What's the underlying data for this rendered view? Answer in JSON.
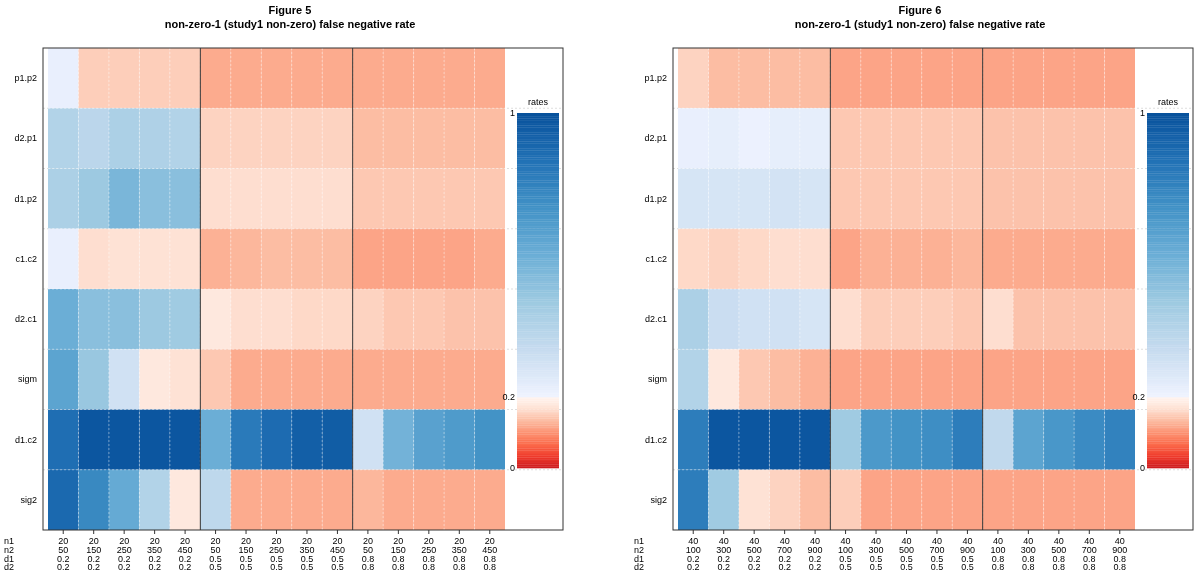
{
  "chart_data": [
    {
      "type": "heatmap",
      "title": "Figure 5",
      "subtitle": "non-zero-1 (study1 non-zero) false negative rate",
      "xlabel": "n1\nn2\nd1\nd2",
      "clabel": "rates",
      "clim": [
        0,
        1
      ],
      "cticks": [
        0,
        0.2,
        1
      ],
      "grid": true,
      "categories": [
        "20\n50\n0.2\n0.2",
        "20\n150\n0.2\n0.2",
        "20\n250\n0.2\n0.2",
        "20\n350\n0.2\n0.2",
        "20\n450\n0.2\n0.2",
        "20\n50\n0.5\n0.5",
        "20\n150\n0.5\n0.5",
        "20\n250\n0.5\n0.5",
        "20\n350\n0.5\n0.5",
        "20\n450\n0.5\n0.5",
        "20\n50\n0.8\n0.8",
        "20\n150\n0.8\n0.8",
        "20\n250\n0.8\n0.8",
        "20\n350\n0.8\n0.8",
        "20\n450\n0.8\n0.8"
      ],
      "y_categories": [
        "p1.p2",
        "d2.p1",
        "d1.p2",
        "c1.c2",
        "d2.c1",
        "sigm",
        "d1.c2",
        "sig2"
      ],
      "cells": [
        [
          0.22,
          0.15,
          0.15,
          0.15,
          0.15,
          0.12,
          0.12,
          0.12,
          0.12,
          0.12,
          0.12,
          0.12,
          0.12,
          0.12,
          0.12
        ],
        [
          0.4,
          0.37,
          0.42,
          0.41,
          0.4,
          0.155,
          0.155,
          0.155,
          0.155,
          0.155,
          0.135,
          0.135,
          0.135,
          0.135,
          0.135
        ],
        [
          0.42,
          0.47,
          0.56,
          0.52,
          0.52,
          0.165,
          0.165,
          0.165,
          0.165,
          0.165,
          0.145,
          0.145,
          0.145,
          0.145,
          0.145
        ],
        [
          0.22,
          0.165,
          0.17,
          0.17,
          0.17,
          0.125,
          0.13,
          0.135,
          0.135,
          0.135,
          0.115,
          0.115,
          0.115,
          0.115,
          0.12
        ],
        [
          0.6,
          0.52,
          0.52,
          0.47,
          0.46,
          0.18,
          0.165,
          0.165,
          0.16,
          0.16,
          0.155,
          0.145,
          0.145,
          0.14,
          0.14
        ],
        [
          0.65,
          0.48,
          0.3,
          0.18,
          0.17,
          0.145,
          0.12,
          0.12,
          0.12,
          0.12,
          0.12,
          0.12,
          0.12,
          0.12,
          0.12
        ],
        [
          0.88,
          0.98,
          0.98,
          0.98,
          0.98,
          0.6,
          0.83,
          0.89,
          0.94,
          0.95,
          0.3,
          0.58,
          0.66,
          0.69,
          0.73
        ],
        [
          0.9,
          0.77,
          0.62,
          0.4,
          0.18,
          0.36,
          0.12,
          0.12,
          0.12,
          0.12,
          0.13,
          0.12,
          0.12,
          0.12,
          0.12
        ]
      ]
    },
    {
      "type": "heatmap",
      "title": "Figure 6",
      "subtitle": "non-zero-1 (study1 non-zero) false negative rate",
      "xlabel": "n1\nn2\nd1\nd2",
      "clabel": "rates",
      "clim": [
        0,
        1
      ],
      "cticks": [
        0,
        0.2,
        1
      ],
      "grid": true,
      "categories": [
        "40\n100\n0.2\n0.2",
        "40\n300\n0.2\n0.2",
        "40\n500\n0.2\n0.2",
        "40\n700\n0.2\n0.2",
        "40\n900\n0.2\n0.2",
        "40\n100\n0.5\n0.5",
        "40\n300\n0.5\n0.5",
        "40\n500\n0.5\n0.5",
        "40\n700\n0.5\n0.5",
        "40\n900\n0.5\n0.5",
        "40\n100\n0.8\n0.8",
        "40\n300\n0.8\n0.8",
        "40\n500\n0.8\n0.8",
        "40\n700\n0.8\n0.8",
        "40\n900\n0.8\n0.8"
      ],
      "y_categories": [
        "p1.p2",
        "d2.p1",
        "d1.p2",
        "c1.c2",
        "d2.c1",
        "sigm",
        "d1.c2",
        "sig2"
      ],
      "cells": [
        [
          0.155,
          0.135,
          0.135,
          0.135,
          0.135,
          0.115,
          0.115,
          0.115,
          0.115,
          0.115,
          0.115,
          0.115,
          0.115,
          0.115,
          0.115
        ],
        [
          0.22,
          0.23,
          0.21,
          0.23,
          0.23,
          0.145,
          0.145,
          0.145,
          0.145,
          0.145,
          0.14,
          0.14,
          0.14,
          0.14,
          0.14
        ],
        [
          0.28,
          0.28,
          0.28,
          0.29,
          0.28,
          0.145,
          0.145,
          0.145,
          0.145,
          0.145,
          0.14,
          0.14,
          0.14,
          0.14,
          0.14
        ],
        [
          0.16,
          0.155,
          0.16,
          0.165,
          0.165,
          0.115,
          0.125,
          0.125,
          0.125,
          0.13,
          0.12,
          0.12,
          0.12,
          0.12,
          0.12
        ],
        [
          0.42,
          0.32,
          0.3,
          0.3,
          0.28,
          0.165,
          0.15,
          0.15,
          0.15,
          0.145,
          0.165,
          0.14,
          0.14,
          0.14,
          0.14
        ],
        [
          0.4,
          0.18,
          0.145,
          0.135,
          0.125,
          0.115,
          0.115,
          0.115,
          0.115,
          0.115,
          0.115,
          0.115,
          0.115,
          0.115,
          0.115
        ],
        [
          0.82,
          0.98,
          0.98,
          0.98,
          0.98,
          0.46,
          0.7,
          0.73,
          0.75,
          0.82,
          0.35,
          0.65,
          0.71,
          0.76,
          0.8
        ],
        [
          0.82,
          0.46,
          0.17,
          0.155,
          0.135,
          0.15,
          0.115,
          0.115,
          0.115,
          0.115,
          0.115,
          0.115,
          0.115,
          0.115,
          0.115
        ]
      ]
    }
  ]
}
